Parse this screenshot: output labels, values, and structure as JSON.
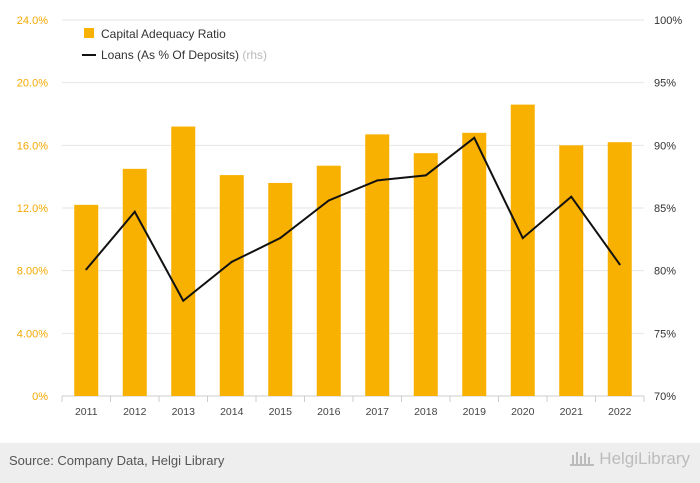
{
  "colors": {
    "bar": "#f8b100",
    "line": "#111111",
    "grid": "#e6e6e6",
    "axis_left": "#f5a800"
  },
  "chart_data": {
    "type": "bar",
    "categories": [
      "2011",
      "2012",
      "2013",
      "2014",
      "2015",
      "2016",
      "2017",
      "2018",
      "2019",
      "2020",
      "2021",
      "2022"
    ],
    "series": [
      {
        "name": "Capital Adequacy Ratio",
        "type": "bar",
        "axis": "left",
        "values": [
          12.2,
          14.5,
          17.2,
          14.1,
          13.6,
          14.7,
          16.7,
          15.5,
          16.8,
          18.6,
          16.0,
          16.2
        ]
      },
      {
        "name": "Loans (As % Of Deposits)",
        "type": "line",
        "axis": "right",
        "values": [
          80.1,
          84.7,
          77.6,
          80.7,
          82.6,
          85.6,
          87.2,
          87.6,
          90.6,
          82.6,
          85.9,
          80.5
        ]
      }
    ],
    "y_left": {
      "ylim": [
        0,
        24
      ],
      "ticks": [
        "0%",
        "4.00%",
        "8.00%",
        "12.0%",
        "16.0%",
        "20.0%",
        "24.0%"
      ]
    },
    "y_right": {
      "ylim": [
        70,
        100
      ],
      "ticks": [
        "70%",
        "75%",
        "80%",
        "85%",
        "90%",
        "95%",
        "100%"
      ]
    },
    "legend": {
      "position": "top-left",
      "rhs_suffix": "(rhs)"
    },
    "grid": true
  },
  "footer": {
    "source": "Source: Company Data, Helgi Library",
    "brand": "HelgiLibrary"
  }
}
